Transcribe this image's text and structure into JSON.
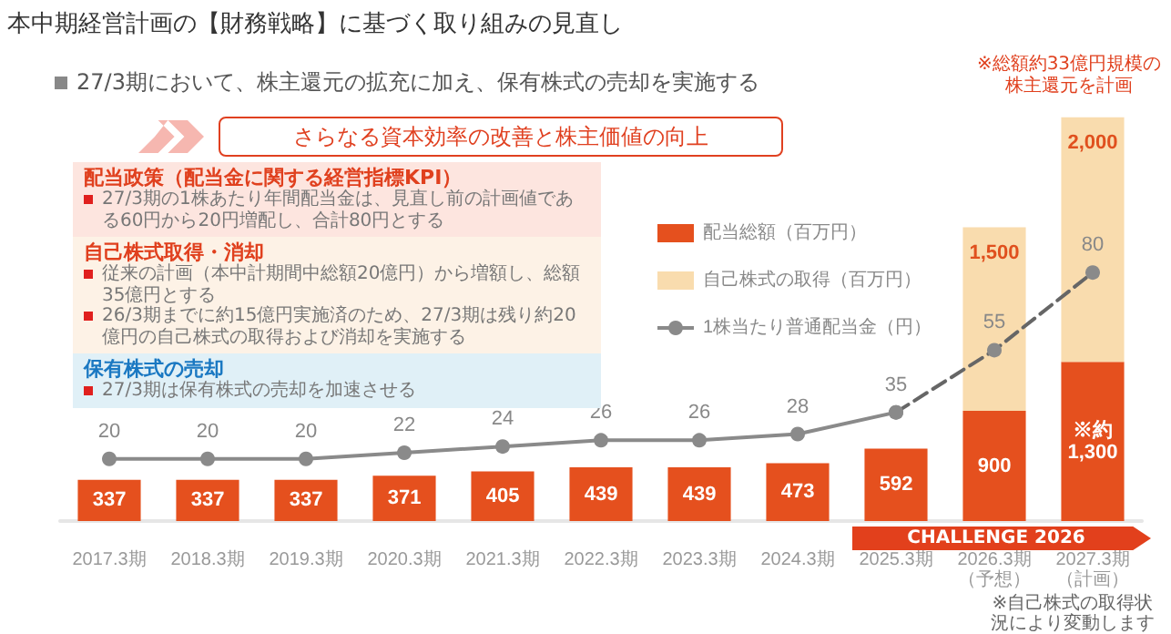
{
  "chart_data": {
    "type": "bar",
    "stacked": true,
    "title": "本中期経営計画の【財務戦略】に基づく取り組みの見直し",
    "subtitle": "27/3期において、株主還元の拡充に加え、保有株式の売却を実施する",
    "categories": [
      "2017.3期",
      "2018.3期",
      "2019.3期",
      "2020.3期",
      "2021.3期",
      "2022.3期",
      "2023.3期",
      "2024.3期",
      "2025.3期",
      "2026.3期（予想）",
      "2027.3期（計画）"
    ],
    "series": [
      {
        "name": "配当総額（百万円）",
        "color": "#e5501e",
        "values": [
          337,
          337,
          337,
          371,
          405,
          439,
          439,
          473,
          592,
          900,
          1300
        ],
        "value_labels": [
          "337",
          "337",
          "337",
          "371",
          "405",
          "439",
          "439",
          "473",
          "592",
          "900",
          "※約1,300"
        ]
      },
      {
        "name": "自己株式の取得（百万円）",
        "color": "#f9dcae",
        "values": [
          null,
          null,
          null,
          null,
          null,
          null,
          null,
          null,
          null,
          1500,
          2000
        ],
        "value_labels": [
          null,
          null,
          null,
          null,
          null,
          null,
          null,
          null,
          null,
          "1,500",
          "2,000"
        ]
      },
      {
        "name": "1株当たり普通配当金（円）",
        "type": "line",
        "axis": "y2",
        "color": "#8a8a8a",
        "line_style": "solid",
        "values": [
          20,
          20,
          20,
          22,
          24,
          26,
          26,
          28,
          35,
          null,
          null
        ]
      },
      {
        "type": "line",
        "axis": "y2",
        "color": "#666666",
        "line_style": "dashed",
        "values": [
          null,
          null,
          null,
          null,
          null,
          null,
          null,
          null,
          35,
          55,
          80
        ],
        "value_labels": [
          null,
          null,
          null,
          null,
          null,
          null,
          null,
          null,
          null,
          "55",
          "80"
        ]
      }
    ],
    "data_labels": true,
    "marker": "circle",
    "legend": "top",
    "grid": false,
    "annotations": [
      "さらなる資本効率の改善と株主価値の向上",
      "配当政策（配当金に関する経営指標KPI）",
      "27/3期の1株あたり年間配当金は、見直し前の計画値である60円から20円増配し、合計80円とする",
      "自己株式取得・消却",
      "従来の計画（本中計期間中総額20億円）から増額し、総額35億円とする",
      "26/3期までに約15億円実施済のため、27/3期は残り約20億円の自己株式の取得および消却を実施する",
      "保有株式の売却",
      "27/3期は保有株式の売却を加速させる",
      "※総額約33億円規模の株主還元を計画",
      "CHALLENGE 2026",
      "※自己株式の取得状況により変動します"
    ]
  }
}
